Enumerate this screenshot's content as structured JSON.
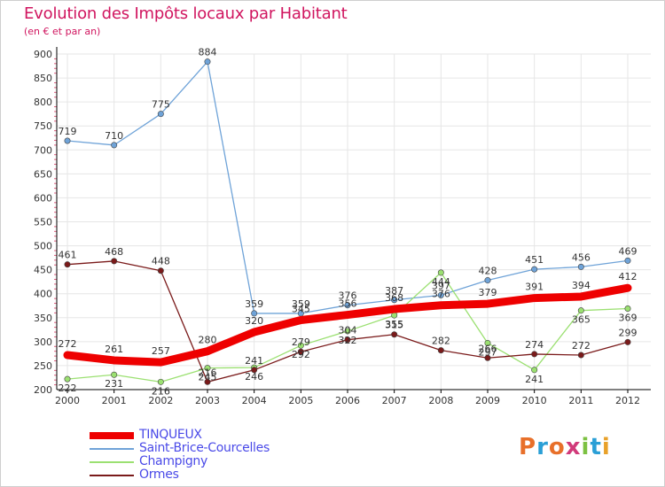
{
  "header": {
    "title": "Evolution des Impôts locaux par Habitant",
    "subtitle": "(en € et par an)"
  },
  "brand": {
    "text": "Proxiti",
    "colors": [
      "#e8702a",
      "#2a9fd6",
      "#e8702a",
      "#d13a7a",
      "#7cc142",
      "#2a9fd6",
      "#e8a12a"
    ]
  },
  "colors": {
    "title": "#d0155f",
    "legend_text": "#4a4ae8",
    "axis": "#000000",
    "grid": "#e6e6e6"
  },
  "chart_data": {
    "type": "line",
    "x": [
      2000,
      2001,
      2002,
      2003,
      2004,
      2005,
      2006,
      2007,
      2008,
      2009,
      2010,
      2011,
      2012
    ],
    "ylim": [
      200,
      900
    ],
    "yticks": [
      200,
      250,
      300,
      350,
      400,
      450,
      500,
      550,
      600,
      650,
      700,
      750,
      800,
      850,
      900
    ],
    "grid": true,
    "legend_position": "bottom-left",
    "series": [
      {
        "name": "TINQUEUX",
        "color": "#ee0000",
        "values": [
          272,
          261,
          257,
          280,
          320,
          345,
          356,
          368,
          376,
          379,
          391,
          394,
          412
        ]
      },
      {
        "name": "Saint-Brice-Courcelles",
        "color": "#6fa3d8",
        "values": [
          719,
          710,
          775,
          884,
          359,
          359,
          376,
          387,
          397,
          428,
          451,
          456,
          469
        ]
      },
      {
        "name": "Champigny",
        "color": "#9be071",
        "values": [
          222,
          231,
          216,
          245,
          246,
          292,
          322,
          355,
          444,
          297,
          241,
          365,
          369
        ]
      },
      {
        "name": "Ormes",
        "color": "#7a1a1a",
        "values": [
          461,
          468,
          448,
          216,
          241,
          279,
          304,
          315,
          282,
          266,
          274,
          272,
          299
        ]
      }
    ]
  }
}
